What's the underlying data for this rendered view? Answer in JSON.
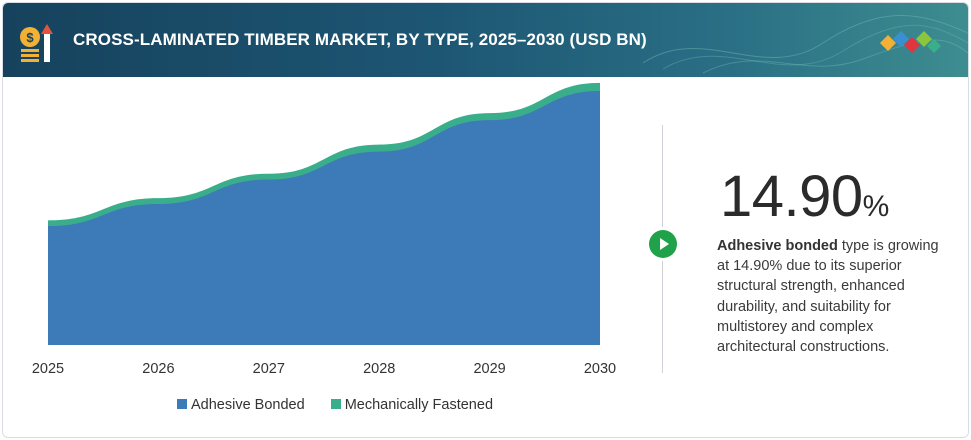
{
  "header": {
    "title": "CROSS-LAMINATED TIMBER MARKET, BY TYPE, 2025–2030 (USD BN)"
  },
  "stat": {
    "value": "14.90",
    "unit": "%"
  },
  "description": {
    "highlight": "Adhesive bonded",
    "text": " type is growing at 14.90% due to its superior structural strength, enhanced durability, and suitability for multistorey and complex architectural constructions."
  },
  "colors": {
    "adhesive_bonded": "#3d7ab8",
    "mechanically_fastened": "#3aae8b",
    "header_bg": "#1d5673",
    "accent_green": "#1fa24a"
  },
  "chart_data": {
    "type": "area",
    "stacked": true,
    "title": "CROSS-LAMINATED TIMBER MARKET, BY TYPE, 2025–2030 (USD BN)",
    "x": [
      "2025",
      "2026",
      "2027",
      "2028",
      "2029",
      "2030"
    ],
    "series": [
      {
        "name": "Adhesive Bonded",
        "values": [
          1.02,
          1.21,
          1.42,
          1.66,
          1.93,
          2.18
        ]
      },
      {
        "name": "Mechanically Fastened",
        "values": [
          0.05,
          0.05,
          0.05,
          0.06,
          0.06,
          0.07
        ]
      }
    ],
    "ylim": [
      0,
      2.3
    ],
    "y_axis_visible": false,
    "grid": false,
    "legend": "bottom"
  }
}
